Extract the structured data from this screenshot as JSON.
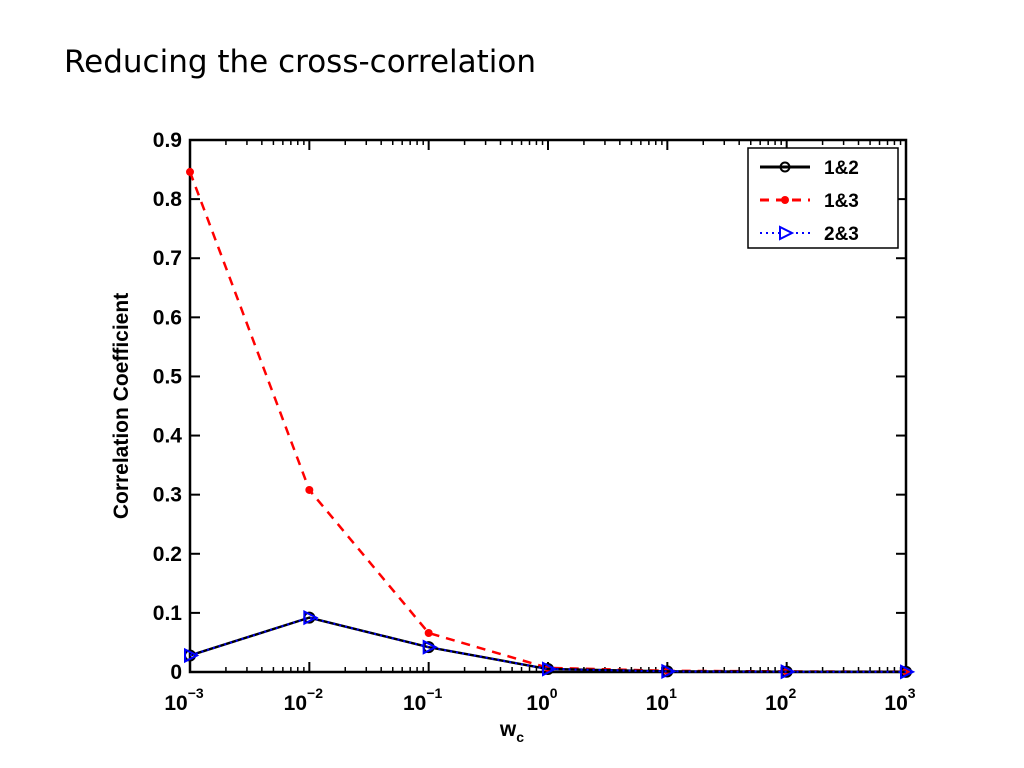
{
  "slide": {
    "title": "Reducing the cross-correlation"
  },
  "chart_data": {
    "type": "line",
    "xscale": "log",
    "x": [
      0.001,
      0.01,
      0.1,
      1,
      10,
      100,
      1000
    ],
    "xticks": [
      {
        "base": "10",
        "exp": "−3"
      },
      {
        "base": "10",
        "exp": "−2"
      },
      {
        "base": "10",
        "exp": "−1"
      },
      {
        "base": "10",
        "exp": "0"
      },
      {
        "base": "10",
        "exp": "1"
      },
      {
        "base": "10",
        "exp": "2"
      },
      {
        "base": "10",
        "exp": "3"
      }
    ],
    "yticks": [
      "0",
      "0.1",
      "0.2",
      "0.3",
      "0.4",
      "0.5",
      "0.6",
      "0.7",
      "0.8",
      "0.9"
    ],
    "ylim": [
      0,
      0.9
    ],
    "xlabel": {
      "main": "w",
      "sub": "c"
    },
    "ylabel": "Correlation Coefficient",
    "grid": false,
    "legend_position": "top-right",
    "series": [
      {
        "name": "1&2",
        "color": "#000000",
        "style": "solid",
        "marker": "circle",
        "values": [
          0.028,
          0.092,
          0.042,
          0.005,
          0.001,
          0.0005,
          0.0003
        ]
      },
      {
        "name": "1&3",
        "color": "#ff0000",
        "style": "dashed",
        "marker": "dot",
        "values": [
          0.846,
          0.308,
          0.066,
          0.007,
          0.002,
          0.001,
          0.0005
        ]
      },
      {
        "name": "2&3",
        "color": "#0000ff",
        "style": "dotted",
        "marker": "triangle-right",
        "values": [
          0.028,
          0.092,
          0.042,
          0.005,
          0.001,
          0.0005,
          0.0003
        ]
      }
    ]
  }
}
